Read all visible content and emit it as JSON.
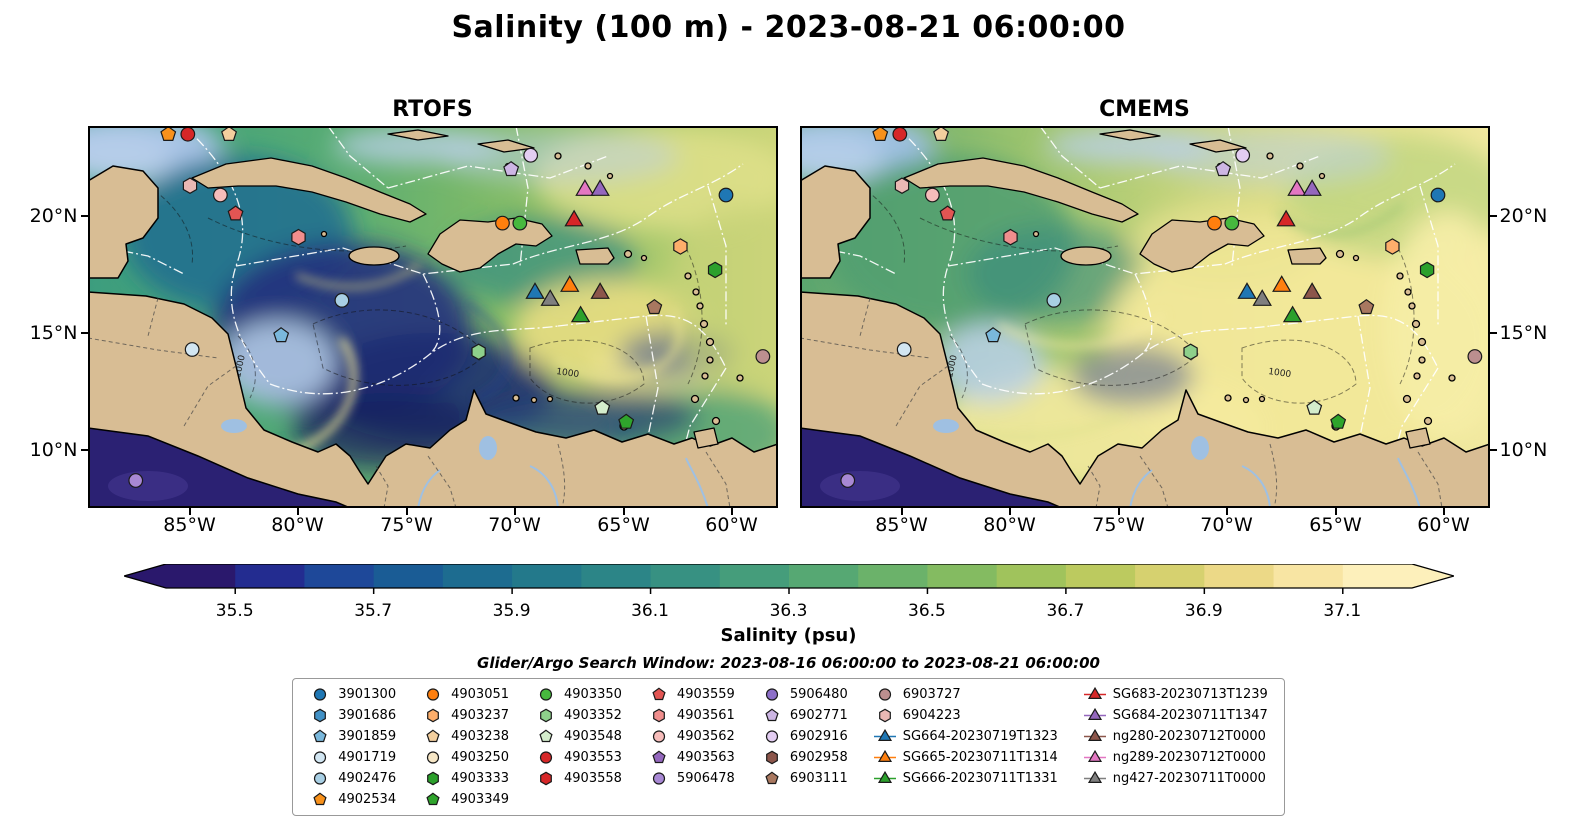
{
  "figure_title": "Salinity (100 m) - 2023-08-21 06:00:00",
  "panels": [
    {
      "title": "RTOFS"
    },
    {
      "title": "CMEMS"
    }
  ],
  "axes": {
    "x_ticks": [
      "85°W",
      "80°W",
      "75°W",
      "70°W",
      "65°W",
      "60°W"
    ],
    "y_ticks": [
      "20°N",
      "15°N",
      "10°N"
    ]
  },
  "contour_label": "1000",
  "colorbar": {
    "label": "Salinity (psu)",
    "ticks": [
      "35.5",
      "35.7",
      "35.9",
      "36.1",
      "36.3",
      "36.5",
      "36.7",
      "36.9",
      "37.1"
    ],
    "colors": [
      "#2a186c",
      "#232c90",
      "#1e4899",
      "#1a5c95",
      "#1d6c90",
      "#23798b",
      "#2c8587",
      "#379182",
      "#459d7b",
      "#56a873",
      "#6bb26a",
      "#84bb61",
      "#a0c35c",
      "#bcca5f",
      "#d6d16f",
      "#ecd987",
      "#f8e5a3",
      "#fdf0bb"
    ]
  },
  "search_window_note": "Glider/Argo Search Window: 2023-08-16 06:00:00 to 2023-08-21 06:00:00",
  "legend": {
    "columns": [
      [
        {
          "label": "3901300",
          "shape": "circle",
          "color": "#1f77b4"
        },
        {
          "label": "3901686",
          "shape": "hexagon",
          "color": "#4191c6"
        },
        {
          "label": "3901859",
          "shape": "pentagon",
          "color": "#7ab8dc"
        },
        {
          "label": "4901719",
          "shape": "circle",
          "color": "#d2e6f2"
        },
        {
          "label": "4902476",
          "shape": "circle",
          "color": "#a8cfe4"
        },
        {
          "label": "4902534",
          "shape": "pentagon",
          "color": "#f8911b"
        }
      ],
      [
        {
          "label": "4903051",
          "shape": "circle",
          "color": "#ff7f0e"
        },
        {
          "label": "4903237",
          "shape": "hexagon",
          "color": "#fdae6b"
        },
        {
          "label": "4903238",
          "shape": "pentagon",
          "color": "#f3cf9e"
        },
        {
          "label": "4903250",
          "shape": "circle",
          "color": "#f7e7c6"
        },
        {
          "label": "4903333",
          "shape": "hexagon",
          "color": "#2ca02c"
        },
        {
          "label": "4903349",
          "shape": "pentagon",
          "color": "#2fa42c"
        }
      ],
      [
        {
          "label": "4903350",
          "shape": "circle",
          "color": "#47b83e"
        },
        {
          "label": "4903352",
          "shape": "hexagon",
          "color": "#8ed08b"
        },
        {
          "label": "4903548",
          "shape": "pentagon",
          "color": "#d4edcc"
        },
        {
          "label": "4903553",
          "shape": "circle",
          "color": "#d62728"
        },
        {
          "label": "4903558",
          "shape": "hexagon",
          "color": "#d62728"
        }
      ],
      [
        {
          "label": "4903559",
          "shape": "pentagon",
          "color": "#e25553"
        },
        {
          "label": "4903561",
          "shape": "hexagon",
          "color": "#f08e8d"
        },
        {
          "label": "4903562",
          "shape": "circle",
          "color": "#f6bcba"
        },
        {
          "label": "4903563",
          "shape": "pentagon",
          "color": "#9467bd"
        },
        {
          "label": "5906478",
          "shape": "circle",
          "color": "#a888d4"
        }
      ],
      [
        {
          "label": "5906480",
          "shape": "circle",
          "color": "#8d6fc9"
        },
        {
          "label": "6902771",
          "shape": "pentagon",
          "color": "#cdb6e4"
        },
        {
          "label": "6902916",
          "shape": "circle",
          "color": "#e3cdf2"
        },
        {
          "label": "6902958",
          "shape": "hexagon",
          "color": "#8c564b"
        },
        {
          "label": "6903111",
          "shape": "pentagon",
          "color": "#a97860"
        }
      ],
      [
        {
          "label": "6903727",
          "shape": "circle",
          "color": "#bc8f8f"
        },
        {
          "label": "6904223",
          "shape": "hexagon",
          "color": "#eab8b4"
        },
        {
          "label": "SG664-20230719T1323",
          "shape": "glider",
          "color": "#1f77b4"
        },
        {
          "label": "SG665-20230711T1314",
          "shape": "glider",
          "color": "#ff7f0e"
        },
        {
          "label": "SG666-20230711T1331",
          "shape": "glider",
          "color": "#2ca02c"
        }
      ],
      [
        {
          "label": "SG683-20230713T1239",
          "shape": "glider",
          "color": "#d62728"
        },
        {
          "label": "SG684-20230711T1347",
          "shape": "glider",
          "color": "#9467bd"
        },
        {
          "label": "ng280-20230712T0000",
          "shape": "glider",
          "color": "#8c564b"
        },
        {
          "label": "ng289-20230712T0000",
          "shape": "glider",
          "color": "#e377c2"
        },
        {
          "label": "ng427-20230711T0000",
          "shape": "glider",
          "color": "#7f7f7f"
        }
      ]
    ]
  },
  "chart_data": {
    "type": "heatmap",
    "title": "Salinity (100 m) - 2023-08-21 06:00:00",
    "variable": "Salinity (psu)",
    "depth_m": 100,
    "valid_time": "2023-08-21 06:00:00",
    "models": [
      "RTOFS",
      "CMEMS"
    ],
    "colorbar_range": [
      35.4,
      37.2
    ],
    "colorbar_ticks": [
      35.5,
      35.7,
      35.9,
      36.1,
      36.3,
      36.5,
      36.7,
      36.9,
      37.1
    ],
    "lon_range_deg_w": [
      89.7,
      57.9
    ],
    "lat_range_deg_n": [
      7.5,
      23.85
    ],
    "markers": [
      {
        "id": "4902534",
        "lon_w": 86.0,
        "lat_n": 23.5
      },
      {
        "id": "4903553",
        "lon_w": 85.1,
        "lat_n": 23.5
      },
      {
        "id": "4903238",
        "lon_w": 83.2,
        "lat_n": 23.5
      },
      {
        "id": "6902916",
        "lon_w": 69.3,
        "lat_n": 22.6
      },
      {
        "id": "6902771",
        "lon_w": 70.2,
        "lat_n": 22.0
      },
      {
        "id": "6904223",
        "lon_w": 85.0,
        "lat_n": 21.3
      },
      {
        "id": "ng289-20230712T0000",
        "lon_w": 66.8,
        "lat_n": 21.1
      },
      {
        "id": "SG684-20230711T1347",
        "lon_w": 66.1,
        "lat_n": 21.1
      },
      {
        "id": "4903562",
        "lon_w": 83.6,
        "lat_n": 20.9
      },
      {
        "id": "3901300",
        "lon_w": 60.3,
        "lat_n": 20.9
      },
      {
        "id": "4903559",
        "lon_w": 82.9,
        "lat_n": 20.1
      },
      {
        "id": "SG683-20230713T1239",
        "lon_w": 67.3,
        "lat_n": 19.8
      },
      {
        "id": "4903051",
        "lon_w": 70.6,
        "lat_n": 19.7
      },
      {
        "id": "4903350",
        "lon_w": 69.8,
        "lat_n": 19.7
      },
      {
        "id": "4903561",
        "lon_w": 80.0,
        "lat_n": 19.1
      },
      {
        "id": "4903237",
        "lon_w": 62.4,
        "lat_n": 18.7
      },
      {
        "id": "4903333",
        "lon_w": 60.8,
        "lat_n": 17.7
      },
      {
        "id": "SG664-20230719T1323",
        "lon_w": 69.1,
        "lat_n": 16.7
      },
      {
        "id": "ng427-20230711T0000",
        "lon_w": 68.4,
        "lat_n": 16.4
      },
      {
        "id": "SG665-20230711T1314",
        "lon_w": 67.5,
        "lat_n": 17.0
      },
      {
        "id": "ng280-20230712T0000",
        "lon_w": 66.1,
        "lat_n": 16.7
      },
      {
        "id": "SG666-20230711T1331",
        "lon_w": 67.0,
        "lat_n": 15.7
      },
      {
        "id": "6903111",
        "lon_w": 63.6,
        "lat_n": 16.1
      },
      {
        "id": "4902476",
        "lon_w": 78.0,
        "lat_n": 16.4
      },
      {
        "id": "3901859",
        "lon_w": 80.8,
        "lat_n": 14.9
      },
      {
        "id": "4901719",
        "lon_w": 84.9,
        "lat_n": 14.3
      },
      {
        "id": "4903352",
        "lon_w": 71.7,
        "lat_n": 14.2
      },
      {
        "id": "6903727",
        "lon_w": 58.6,
        "lat_n": 14.0
      },
      {
        "id": "4903548",
        "lon_w": 66.0,
        "lat_n": 11.8
      },
      {
        "id": "4903349",
        "lon_w": 64.9,
        "lat_n": 11.2
      },
      {
        "id": "5906478",
        "lon_w": 87.5,
        "lat_n": 8.7
      }
    ]
  }
}
